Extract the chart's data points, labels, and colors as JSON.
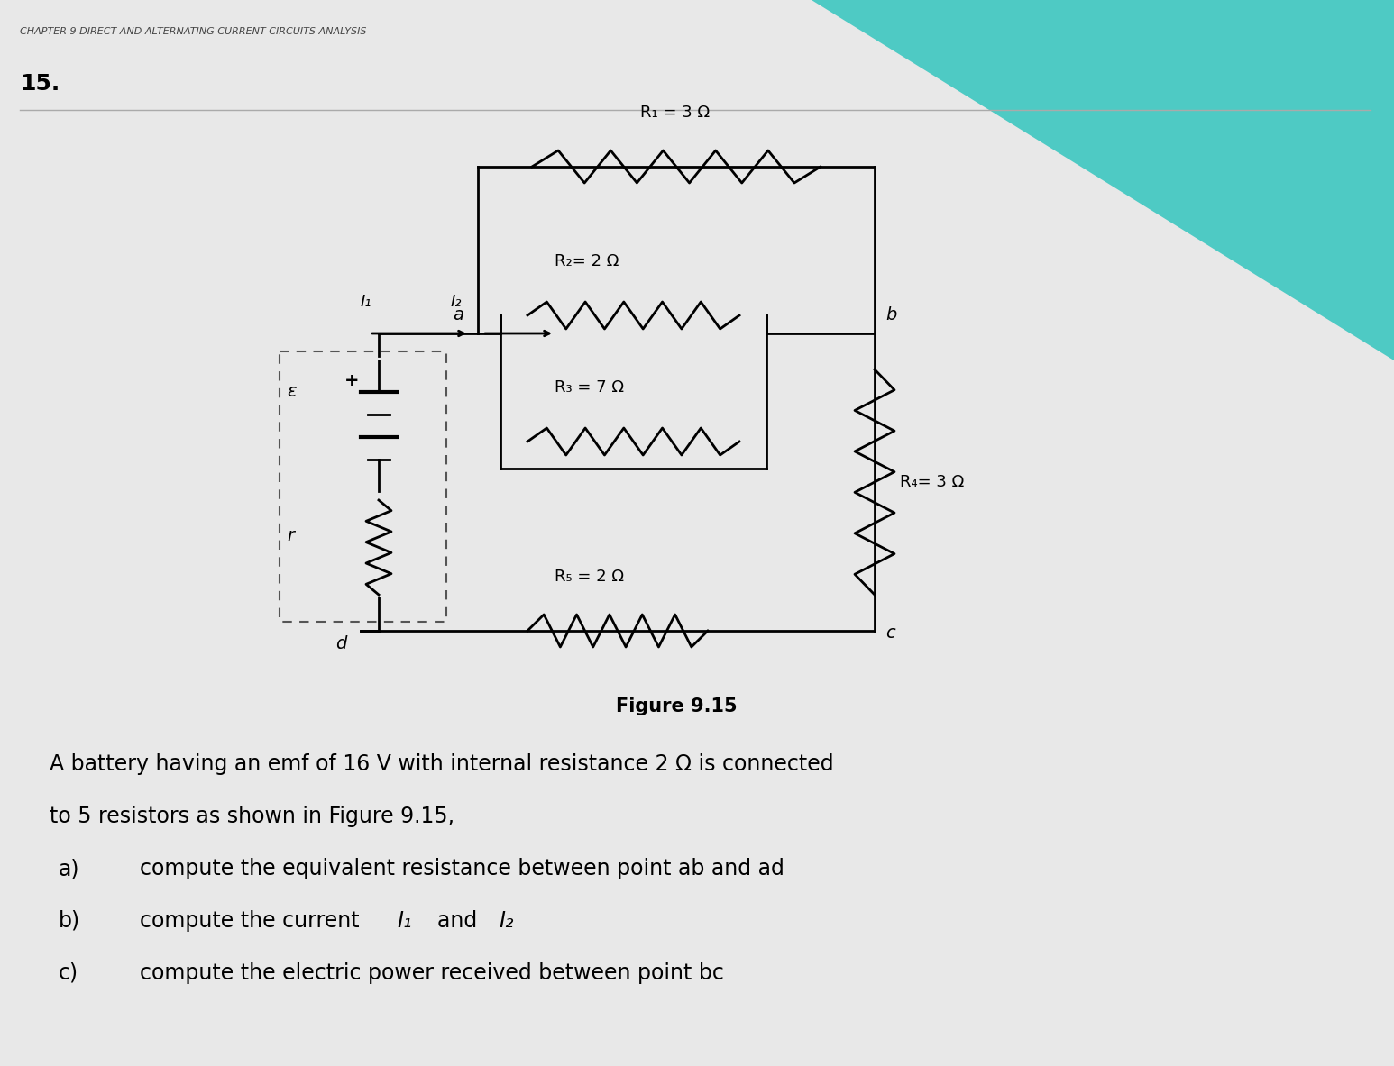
{
  "chapter_header": "CHAPTER 9 DIRECT AND ALTERNATING CURRENT CIRCUITS ANALYSIS",
  "problem_number": "15.",
  "figure_label": "Figure 9.15",
  "problem_text_line1": "A battery having an emf of 16 V with internal resistance 2 Ω is connected",
  "problem_text_line2": "to 5 resistors as shown in Figure 9.15,",
  "item_a_prefix": "a)",
  "item_a_text": "compute the equivalent resistance between point ab and ad",
  "item_b_prefix": "b)",
  "item_b_text": "compute the current I₁ and I₂",
  "item_c_prefix": "c)",
  "item_c_text": "compute the electric power received between point bc",
  "page_bg": "#e8e8e8",
  "paper_bg": "#e0e0e0",
  "teal_color": "#4ecac4",
  "R1_label": "R₁ = 3 Ω",
  "R2_label": "R₂= 2 Ω",
  "R3_label": "R₃ = 7 Ω",
  "R4_label": "R₄= 3 Ω",
  "R5_label": "R₅ = 2 Ω",
  "point_a": "a",
  "point_b": "b",
  "point_c": "c",
  "point_d": "d",
  "label_I1": "I₁",
  "label_I2": "I₂",
  "label_eps": "ε",
  "label_r": "r",
  "label_plus": "+"
}
